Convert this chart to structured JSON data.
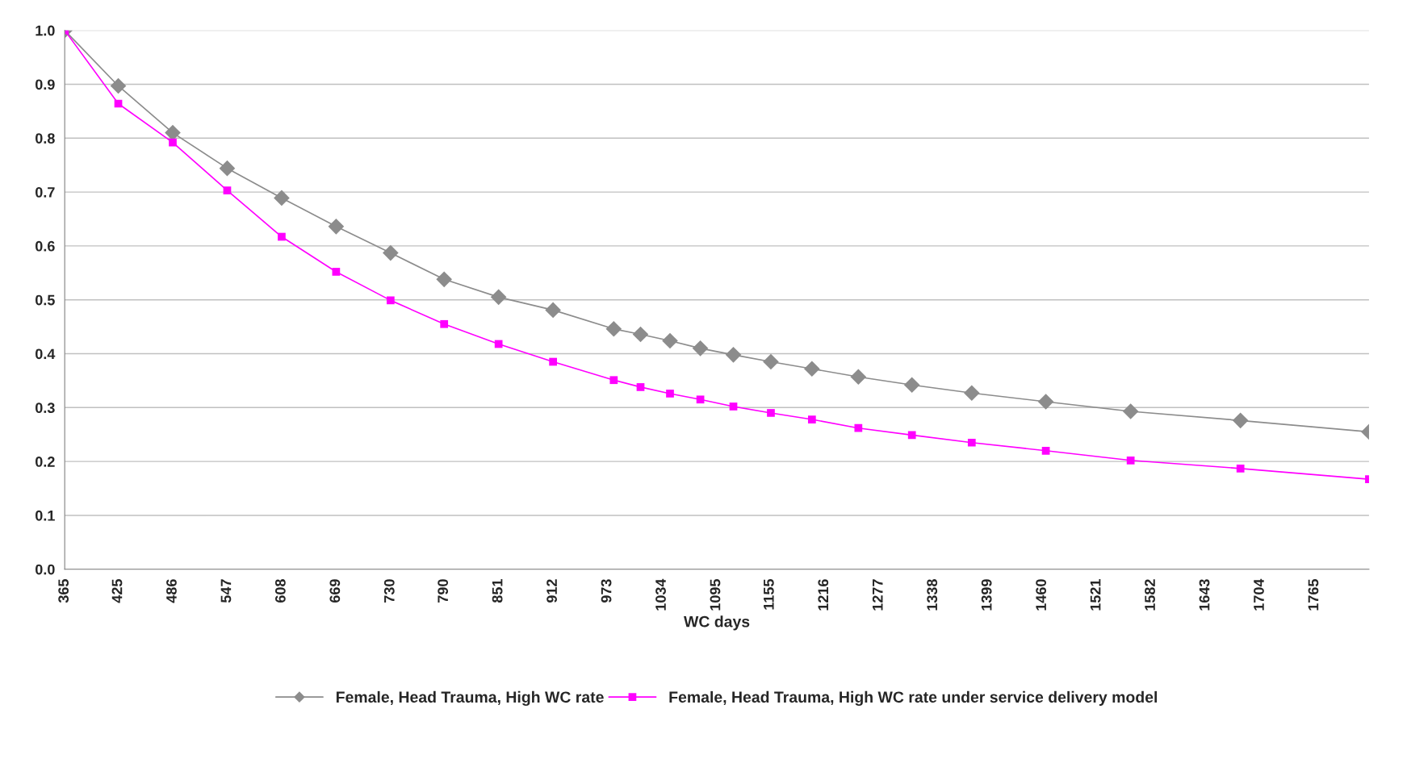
{
  "chart_data": {
    "type": "line",
    "xlabel": "WC days",
    "xlim": [
      365,
      1826
    ],
    "xticks": [
      365,
      425,
      486,
      547,
      608,
      669,
      730,
      790,
      851,
      912,
      973,
      1034,
      1095,
      1155,
      1216,
      1277,
      1338,
      1399,
      1460,
      1521,
      1582,
      1643,
      1704,
      1765
    ],
    "ylim": [
      0,
      1
    ],
    "yticks": [
      {
        "value": 0,
        "label": "0.0"
      },
      {
        "value": 0.1,
        "label": "0.1"
      },
      {
        "value": 0.2,
        "label": "0.2"
      },
      {
        "value": 0.3,
        "label": "0.3"
      },
      {
        "value": 0.4,
        "label": "0.4"
      },
      {
        "value": 0.5,
        "label": "0.5"
      },
      {
        "value": 0.6,
        "label": "0.6"
      },
      {
        "value": 0.7,
        "label": "0.7"
      },
      {
        "value": 0.8,
        "label": "0.8"
      },
      {
        "value": 0.9,
        "label": "0.9"
      },
      {
        "value": 1,
        "label": "1.0"
      }
    ],
    "grid": "y",
    "legend": "bottom",
    "series": [
      {
        "name": "Female, Head Trauma, High WC rate",
        "color": "#8c8c8c",
        "marker": "diamond",
        "x": [
          365,
          425,
          486,
          547,
          608,
          669,
          730,
          790,
          851,
          912,
          980,
          1010,
          1043,
          1077,
          1114,
          1156,
          1202,
          1254,
          1314,
          1381,
          1464,
          1559,
          1682,
          1826
        ],
        "values": [
          1.0,
          0.897,
          0.81,
          0.744,
          0.689,
          0.636,
          0.587,
          0.538,
          0.505,
          0.481,
          0.446,
          0.436,
          0.424,
          0.41,
          0.398,
          0.385,
          0.372,
          0.357,
          0.342,
          0.327,
          0.311,
          0.293,
          0.276,
          0.255
        ]
      },
      {
        "name": "Female, Head Trauma, High WC rate under service delivery model",
        "color": "#ff00ff",
        "marker": "square",
        "x": [
          365,
          425,
          486,
          547,
          608,
          669,
          730,
          790,
          851,
          912,
          980,
          1010,
          1043,
          1077,
          1114,
          1156,
          1202,
          1254,
          1314,
          1381,
          1464,
          1559,
          1682,
          1826
        ],
        "values": [
          1.0,
          0.864,
          0.792,
          0.703,
          0.617,
          0.552,
          0.499,
          0.455,
          0.418,
          0.385,
          0.351,
          0.338,
          0.326,
          0.315,
          0.302,
          0.29,
          0.278,
          0.262,
          0.249,
          0.235,
          0.22,
          0.202,
          0.187,
          0.167
        ]
      }
    ]
  }
}
